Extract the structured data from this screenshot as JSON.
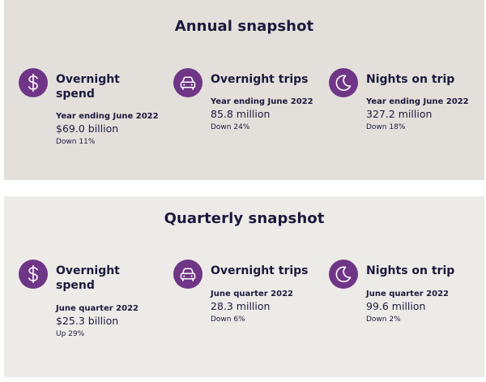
{
  "annual": {
    "title": "Annual snapshot",
    "stats": [
      {
        "icon": "dollar-icon",
        "title_line1": "Overnight",
        "title_line2": "spend",
        "period": "Year ending June 2022",
        "value": "$69.0 billion",
        "change": "Down 11%"
      },
      {
        "icon": "car-icon",
        "title_line1": "Overnight trips",
        "title_line2": "",
        "period": "Year ending June 2022",
        "value": "85.8 million",
        "change": "Down 24%"
      },
      {
        "icon": "moon-icon",
        "title_line1": "Nights on trip",
        "title_line2": "",
        "period": "Year ending June 2022",
        "value": "327.2 million",
        "change": "Down 18%"
      }
    ]
  },
  "quarterly": {
    "title": "Quarterly snapshot",
    "stats": [
      {
        "icon": "dollar-icon",
        "title_line1": "Overnight",
        "title_line2": "spend",
        "period": "June quarter 2022",
        "value": "$25.3 billion",
        "change": "Up 29%"
      },
      {
        "icon": "car-icon",
        "title_line1": "Overnight trips",
        "title_line2": "",
        "period": "June quarter 2022",
        "value": "28.3 million",
        "change": "Down 6%"
      },
      {
        "icon": "moon-icon",
        "title_line1": "Nights on trip",
        "title_line2": "",
        "period": "June quarter 2022",
        "value": "99.6 million",
        "change": "Down 2%"
      }
    ]
  },
  "colors": {
    "icon_background": "#6f3586",
    "text": "#1c1a3b",
    "annual_background": "#e3e0dc",
    "quarterly_background": "#edebe8"
  }
}
